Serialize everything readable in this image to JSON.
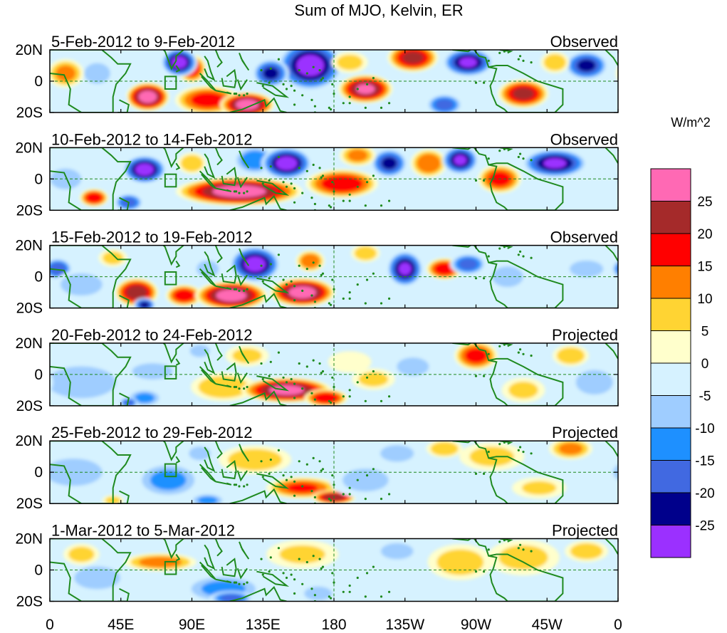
{
  "chart_data": {
    "type": "heatmap",
    "title": "Sum of MJO, Kelvin, ER",
    "units_label": "W/m^2",
    "x_tick_labels": [
      "0",
      "45E",
      "90E",
      "135E",
      "180",
      "135W",
      "90W",
      "45W",
      "0"
    ],
    "x_tick_longitudes": [
      0,
      45,
      90,
      135,
      180,
      225,
      270,
      315,
      360
    ],
    "y_tick_labels": [
      "20N",
      "0",
      "20S"
    ],
    "y_tick_latitudes": [
      20,
      0,
      -20
    ],
    "colorbar": {
      "colors": [
        "#9b30ff",
        "#00008b",
        "#4169e1",
        "#1e90ff",
        "#9fcdff",
        "#d6f2ff",
        "#ffffcc",
        "#ffd433",
        "#ff7f00",
        "#ff0000",
        "#a52a2a",
        "#ff69b4"
      ],
      "tick_labels": [
        "-25",
        "-20",
        "-15",
        "-10",
        "-5",
        "0",
        "5",
        "10",
        "15",
        "20",
        "25"
      ]
    },
    "panels": [
      {
        "period": "5-Feb-2012 to 9-Feb-2012",
        "status": "Observed",
        "anomalies": [
          {
            "lon": 62,
            "lat": -10,
            "lw": 12,
            "lh": 8,
            "v": 28
          },
          {
            "lon": 100,
            "lat": -12,
            "lw": 18,
            "lh": 8,
            "v": 18
          },
          {
            "lon": 125,
            "lat": -15,
            "lw": 15,
            "lh": 7,
            "v": 28
          },
          {
            "lon": 90,
            "lat": 8,
            "lw": 8,
            "lh": 8,
            "v": 18
          },
          {
            "lon": 30,
            "lat": 5,
            "lw": 10,
            "lh": 8,
            "v": -8
          },
          {
            "lon": 82,
            "lat": 12,
            "lw": 10,
            "lh": 8,
            "v": -28
          },
          {
            "lon": 40,
            "lat": -12,
            "lw": 8,
            "lh": 6,
            "v": -5
          },
          {
            "lon": 165,
            "lat": 10,
            "lw": 18,
            "lh": 14,
            "v": -28
          },
          {
            "lon": 140,
            "lat": 5,
            "lw": 10,
            "lh": 8,
            "v": -22
          },
          {
            "lon": 200,
            "lat": -5,
            "lw": 15,
            "lh": 8,
            "v": 26
          },
          {
            "lon": 230,
            "lat": 15,
            "lw": 14,
            "lh": 8,
            "v": 22
          },
          {
            "lon": 265,
            "lat": 12,
            "lw": 14,
            "lh": 8,
            "v": -26
          },
          {
            "lon": 250,
            "lat": -15,
            "lw": 10,
            "lh": 6,
            "v": -18
          },
          {
            "lon": 300,
            "lat": -8,
            "lw": 14,
            "lh": 8,
            "v": 22
          },
          {
            "lon": 340,
            "lat": 10,
            "lw": 12,
            "lh": 8,
            "v": -22
          },
          {
            "lon": 10,
            "lat": 5,
            "lw": 10,
            "lh": 8,
            "v": 12
          },
          {
            "lon": 190,
            "lat": 12,
            "lw": 10,
            "lh": 6,
            "v": 8
          },
          {
            "lon": 320,
            "lat": 12,
            "lw": 8,
            "lh": 6,
            "v": 10
          }
        ]
      },
      {
        "period": "10-Feb-2012 to 14-Feb-2012",
        "status": "Observed",
        "anomalies": [
          {
            "lon": 120,
            "lat": -8,
            "lw": 35,
            "lh": 8,
            "v": 28
          },
          {
            "lon": 28,
            "lat": -12,
            "lw": 8,
            "lh": 5,
            "v": 20
          },
          {
            "lon": 60,
            "lat": 6,
            "lw": 12,
            "lh": 8,
            "v": -28
          },
          {
            "lon": 130,
            "lat": 12,
            "lw": 12,
            "lh": 8,
            "v": -15
          },
          {
            "lon": 150,
            "lat": 10,
            "lw": 14,
            "lh": 9,
            "v": -28
          },
          {
            "lon": 185,
            "lat": -3,
            "lw": 20,
            "lh": 8,
            "v": 20
          },
          {
            "lon": 215,
            "lat": 10,
            "lw": 10,
            "lh": 8,
            "v": -22
          },
          {
            "lon": 240,
            "lat": 10,
            "lw": 10,
            "lh": 8,
            "v": 15
          },
          {
            "lon": 260,
            "lat": 12,
            "lw": 10,
            "lh": 8,
            "v": -26
          },
          {
            "lon": 285,
            "lat": 0,
            "lw": 12,
            "lh": 8,
            "v": 18
          },
          {
            "lon": 320,
            "lat": 10,
            "lw": 18,
            "lh": 8,
            "v": -26
          },
          {
            "lon": 195,
            "lat": 15,
            "lw": 10,
            "lh": 6,
            "v": 12
          },
          {
            "lon": 50,
            "lat": -15,
            "lw": 8,
            "lh": 5,
            "v": -18
          },
          {
            "lon": 10,
            "lat": 0,
            "lw": 12,
            "lh": 8,
            "v": -8
          },
          {
            "lon": 90,
            "lat": 10,
            "lw": 8,
            "lh": 6,
            "v": 10
          }
        ]
      },
      {
        "period": "15-Feb-2012 to 19-Feb-2012",
        "status": "Observed",
        "anomalies": [
          {
            "lon": 5,
            "lat": 5,
            "lw": 8,
            "lh": 6,
            "v": -20
          },
          {
            "lon": 20,
            "lat": -5,
            "lw": 15,
            "lh": 8,
            "v": -10
          },
          {
            "lon": 55,
            "lat": -10,
            "lw": 12,
            "lh": 8,
            "v": 24
          },
          {
            "lon": 85,
            "lat": -12,
            "lw": 10,
            "lh": 6,
            "v": 20
          },
          {
            "lon": 115,
            "lat": -12,
            "lw": 20,
            "lh": 8,
            "v": 28
          },
          {
            "lon": 160,
            "lat": -10,
            "lw": 18,
            "lh": 8,
            "v": 28
          },
          {
            "lon": 130,
            "lat": 8,
            "lw": 14,
            "lh": 10,
            "v": -28
          },
          {
            "lon": 100,
            "lat": 5,
            "lw": 8,
            "lh": 6,
            "v": -10
          },
          {
            "lon": 165,
            "lat": 10,
            "lw": 8,
            "lh": 6,
            "v": 15
          },
          {
            "lon": 225,
            "lat": 5,
            "lw": 10,
            "lh": 10,
            "v": -26
          },
          {
            "lon": 250,
            "lat": 5,
            "lw": 10,
            "lh": 6,
            "v": 20
          },
          {
            "lon": 265,
            "lat": 8,
            "lw": 10,
            "lh": 6,
            "v": -18
          },
          {
            "lon": 290,
            "lat": 0,
            "lw": 12,
            "lh": 8,
            "v": -8
          },
          {
            "lon": 340,
            "lat": 5,
            "lw": 12,
            "lh": 6,
            "v": -10
          },
          {
            "lon": 200,
            "lat": 15,
            "lw": 8,
            "lh": 5,
            "v": 10
          },
          {
            "lon": 60,
            "lat": -18,
            "lw": 6,
            "lh": 4,
            "v": -22
          },
          {
            "lon": 40,
            "lat": 12,
            "lw": 8,
            "lh": 5,
            "v": 8
          }
        ]
      },
      {
        "period": "20-Feb-2012 to 24-Feb-2012",
        "status": "Projected",
        "anomalies": [
          {
            "lon": 20,
            "lat": -5,
            "lw": 30,
            "lh": 14,
            "v": -6
          },
          {
            "lon": 60,
            "lat": -15,
            "lw": 10,
            "lh": 5,
            "v": -12
          },
          {
            "lon": 50,
            "lat": -18,
            "lw": 5,
            "lh": 3,
            "v": -20
          },
          {
            "lon": 65,
            "lat": 2,
            "lw": 15,
            "lh": 6,
            "v": -9
          },
          {
            "lon": 110,
            "lat": -8,
            "lw": 18,
            "lh": 8,
            "v": 10
          },
          {
            "lon": 150,
            "lat": -10,
            "lw": 25,
            "lh": 7,
            "v": 27
          },
          {
            "lon": 175,
            "lat": -15,
            "lw": 12,
            "lh": 5,
            "v": 20
          },
          {
            "lon": 230,
            "lat": 5,
            "lw": 14,
            "lh": 8,
            "v": -6
          },
          {
            "lon": 270,
            "lat": 12,
            "lw": 12,
            "lh": 8,
            "v": 18
          },
          {
            "lon": 330,
            "lat": 12,
            "lw": 10,
            "lh": 6,
            "v": 10
          },
          {
            "lon": 125,
            "lat": 12,
            "lw": 12,
            "lh": 6,
            "v": 7
          },
          {
            "lon": 190,
            "lat": 8,
            "lw": 12,
            "lh": 6,
            "v": 5
          },
          {
            "lon": 205,
            "lat": -3,
            "lw": 12,
            "lh": 6,
            "v": 7
          },
          {
            "lon": 300,
            "lat": -10,
            "lw": 12,
            "lh": 7,
            "v": 7
          },
          {
            "lon": 95,
            "lat": 15,
            "lw": 8,
            "lh": 5,
            "v": -7
          },
          {
            "lon": 345,
            "lat": -5,
            "lw": 15,
            "lh": 10,
            "v": -7
          }
        ]
      },
      {
        "period": "25-Feb-2012 to 29-Feb-2012",
        "status": "Projected",
        "anomalies": [
          {
            "lon": 15,
            "lat": 0,
            "lw": 25,
            "lh": 12,
            "v": -6
          },
          {
            "lon": 75,
            "lat": -5,
            "lw": 18,
            "lh": 10,
            "v": -12
          },
          {
            "lon": 95,
            "lat": 12,
            "lw": 8,
            "lh": 5,
            "v": -9
          },
          {
            "lon": 130,
            "lat": 8,
            "lw": 20,
            "lh": 8,
            "v": 9
          },
          {
            "lon": 160,
            "lat": -10,
            "lw": 20,
            "lh": 6,
            "v": 16
          },
          {
            "lon": 180,
            "lat": -16,
            "lw": 12,
            "lh": 4,
            "v": 24
          },
          {
            "lon": 220,
            "lat": 12,
            "lw": 12,
            "lh": 6,
            "v": -10
          },
          {
            "lon": 250,
            "lat": 15,
            "lw": 10,
            "lh": 5,
            "v": 10
          },
          {
            "lon": 280,
            "lat": 10,
            "lw": 18,
            "lh": 8,
            "v": 7
          },
          {
            "lon": 330,
            "lat": 15,
            "lw": 12,
            "lh": 6,
            "v": 12
          },
          {
            "lon": 200,
            "lat": -5,
            "lw": 20,
            "lh": 10,
            "v": -6
          },
          {
            "lon": 40,
            "lat": -18,
            "lw": 6,
            "lh": 3,
            "v": 8
          },
          {
            "lon": 100,
            "lat": -18,
            "lw": 10,
            "lh": 4,
            "v": -12
          },
          {
            "lon": 310,
            "lat": -10,
            "lw": 15,
            "lh": 6,
            "v": 6
          }
        ]
      },
      {
        "period": "1-Mar-2012 to 5-Mar-2012",
        "status": "Projected",
        "anomalies": [
          {
            "lon": 70,
            "lat": 5,
            "lw": 20,
            "lh": 5,
            "v": 13
          },
          {
            "lon": 30,
            "lat": -5,
            "lw": 20,
            "lh": 10,
            "v": -6
          },
          {
            "lon": 110,
            "lat": -12,
            "lw": 22,
            "lh": 8,
            "v": -12
          },
          {
            "lon": 115,
            "lat": -18,
            "lw": 12,
            "lh": 4,
            "v": -18
          },
          {
            "lon": 160,
            "lat": 10,
            "lw": 20,
            "lh": 8,
            "v": 6
          },
          {
            "lon": 220,
            "lat": 12,
            "lw": 12,
            "lh": 6,
            "v": -9
          },
          {
            "lon": 260,
            "lat": 5,
            "lw": 18,
            "lh": 10,
            "v": 8
          },
          {
            "lon": 300,
            "lat": 8,
            "lw": 20,
            "lh": 10,
            "v": 7
          },
          {
            "lon": 340,
            "lat": 12,
            "lw": 12,
            "lh": 6,
            "v": 9
          },
          {
            "lon": 200,
            "lat": -10,
            "lw": 20,
            "lh": 8,
            "v": -5
          },
          {
            "lon": 170,
            "lat": -15,
            "lw": 10,
            "lh": 5,
            "v": -10
          },
          {
            "lon": 20,
            "lat": 10,
            "lw": 10,
            "lh": 6,
            "v": 8
          }
        ]
      }
    ]
  }
}
